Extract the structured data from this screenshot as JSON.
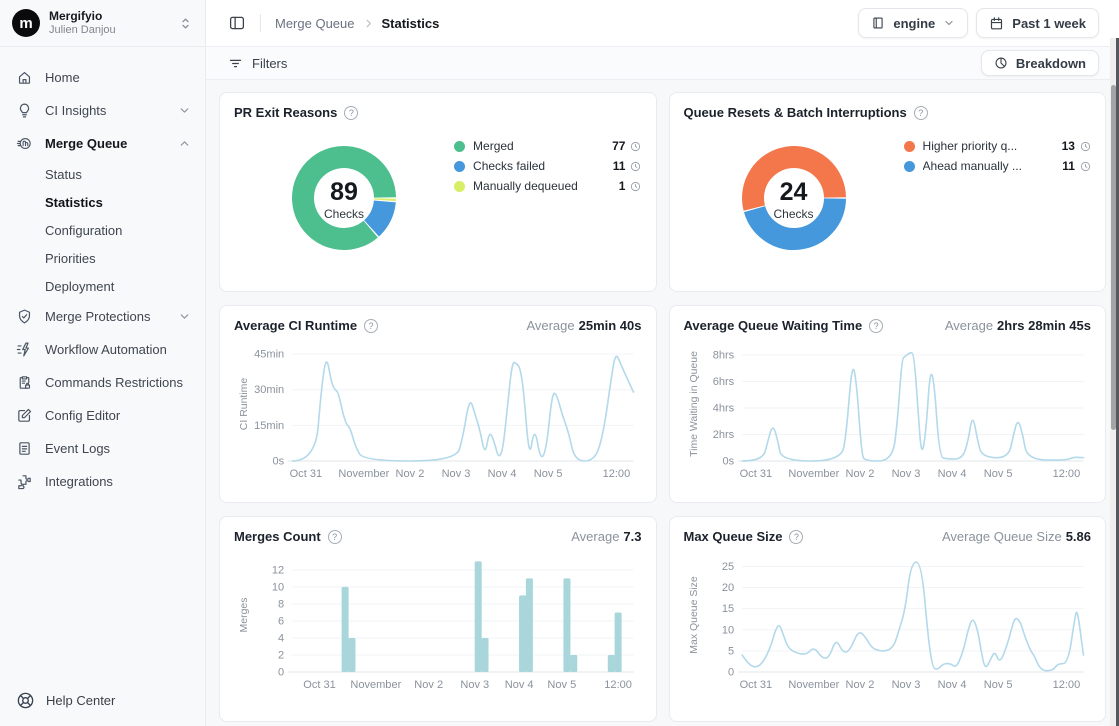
{
  "brand": {
    "org_name": "Mergifyio",
    "user_name": "Julien Danjou",
    "logo_glyph": "m"
  },
  "sidebar": {
    "items": [
      {
        "label": "Home",
        "icon": "home-icon"
      },
      {
        "label": "CI Insights",
        "icon": "lightbulb-icon",
        "chevron": "down"
      },
      {
        "label": "Merge Queue",
        "icon": "merge-queue-icon",
        "chevron": "up",
        "expanded": true
      },
      {
        "label": "Status"
      },
      {
        "label": "Statistics",
        "active": true
      },
      {
        "label": "Configuration"
      },
      {
        "label": "Priorities"
      },
      {
        "label": "Deployment"
      },
      {
        "label": "Merge Protections",
        "icon": "shield-check-icon",
        "chevron": "down"
      },
      {
        "label": "Workflow Automation",
        "icon": "workflow-zap-icon"
      },
      {
        "label": "Commands Restrictions",
        "icon": "clipboard-lock-icon"
      },
      {
        "label": "Config Editor",
        "icon": "pencil-square-icon"
      },
      {
        "label": "Event Logs",
        "icon": "document-lines-icon"
      },
      {
        "label": "Integrations",
        "icon": "puzzle-icon"
      }
    ],
    "help_label": "Help Center"
  },
  "header": {
    "breadcrumb": [
      "Merge Queue",
      "Statistics"
    ],
    "repo_selector": "engine",
    "time_range": "Past 1 week"
  },
  "toolbar": {
    "filters_label": "Filters",
    "breakdown_label": "Breakdown"
  },
  "chart_data": [
    {
      "type": "donut",
      "title": "PR Exit Reasons",
      "center_value": "89",
      "center_label": "Checks",
      "segments": [
        {
          "label": "Merged",
          "value": 77,
          "color": "#4dbe8d"
        },
        {
          "label": "Checks failed",
          "value": 11,
          "color": "#4598db"
        },
        {
          "label": "Manually dequeued",
          "value": 1,
          "color": "#d7ee66"
        }
      ]
    },
    {
      "type": "donut",
      "title": "Queue Resets & Batch Interruptions",
      "center_value": "24",
      "center_label": "Checks",
      "segments": [
        {
          "label": "Higher priority q...",
          "value": 13,
          "color": "#f4764b"
        },
        {
          "label": "Ahead manually ...",
          "value": 11,
          "color": "#4598db"
        }
      ]
    },
    {
      "type": "line",
      "title": "Average CI Runtime",
      "avg_label": "Average",
      "avg_value": "25min 40s",
      "ylabel": "CI Runtime",
      "color": "#b3d9ea",
      "ymax": 48,
      "yticks": [
        {
          "v": 0,
          "t": "0s"
        },
        {
          "v": 15,
          "t": "15min"
        },
        {
          "v": 30,
          "t": "30min"
        },
        {
          "v": 45,
          "t": "45min"
        }
      ],
      "xlabels": [
        "Oct 31",
        "November",
        "Nov 2",
        "Nov 3",
        "Nov 4",
        "Nov 5",
        "12:00"
      ],
      "xfracs": [
        0.04,
        0.21,
        0.345,
        0.48,
        0.615,
        0.75,
        0.95
      ],
      "points": [
        [
          0,
          0
        ],
        [
          0.068,
          0
        ],
        [
          0.085,
          30
        ],
        [
          0.1,
          45
        ],
        [
          0.115,
          33
        ],
        [
          0.125,
          30
        ],
        [
          0.135,
          29
        ],
        [
          0.155,
          16
        ],
        [
          0.17,
          14
        ],
        [
          0.185,
          6
        ],
        [
          0.21,
          0
        ],
        [
          0.48,
          0
        ],
        [
          0.5,
          10
        ],
        [
          0.52,
          27
        ],
        [
          0.535,
          20
        ],
        [
          0.55,
          13
        ],
        [
          0.565,
          2
        ],
        [
          0.578,
          13
        ],
        [
          0.592,
          8
        ],
        [
          0.605,
          1
        ],
        [
          0.618,
          5
        ],
        [
          0.632,
          25
        ],
        [
          0.645,
          42
        ],
        [
          0.658,
          41
        ],
        [
          0.668,
          39
        ],
        [
          0.678,
          30
        ],
        [
          0.695,
          0
        ],
        [
          0.71,
          15
        ],
        [
          0.728,
          0
        ],
        [
          0.745,
          5
        ],
        [
          0.762,
          29
        ],
        [
          0.775,
          28
        ],
        [
          0.79,
          20
        ],
        [
          0.81,
          12
        ],
        [
          0.828,
          0
        ],
        [
          0.885,
          0
        ],
        [
          0.91,
          10
        ],
        [
          0.935,
          35
        ],
        [
          0.948,
          46
        ],
        [
          0.965,
          40
        ],
        [
          1,
          29
        ]
      ]
    },
    {
      "type": "line",
      "title": "Average Queue Waiting Time",
      "avg_label": "Average",
      "avg_value": "2hrs 28min 45s",
      "ylabel": "Time Waiting in Queue",
      "color": "#b3d9ea",
      "ymax": 8.6,
      "yticks": [
        {
          "v": 0,
          "t": "0s"
        },
        {
          "v": 2,
          "t": "2hrs"
        },
        {
          "v": 4,
          "t": "4hrs"
        },
        {
          "v": 6,
          "t": "6hrs"
        },
        {
          "v": 8,
          "t": "8hrs"
        }
      ],
      "xlabels": [
        "Oct 31",
        "November",
        "Nov 2",
        "Nov 3",
        "Nov 4",
        "Nov 5",
        "12:00"
      ],
      "xfracs": [
        0.04,
        0.21,
        0.345,
        0.48,
        0.615,
        0.75,
        0.95
      ],
      "points": [
        [
          0,
          0
        ],
        [
          0.06,
          0
        ],
        [
          0.075,
          1.5
        ],
        [
          0.09,
          2.8
        ],
        [
          0.105,
          1.5
        ],
        [
          0.115,
          0
        ],
        [
          0.29,
          0
        ],
        [
          0.305,
          2
        ],
        [
          0.322,
          7.5
        ],
        [
          0.335,
          6
        ],
        [
          0.35,
          0.5
        ],
        [
          0.36,
          0
        ],
        [
          0.44,
          0
        ],
        [
          0.455,
          3
        ],
        [
          0.468,
          7.7
        ],
        [
          0.478,
          7.9
        ],
        [
          0.492,
          8.2
        ],
        [
          0.503,
          8.1
        ],
        [
          0.515,
          4
        ],
        [
          0.525,
          0.3
        ],
        [
          0.538,
          2
        ],
        [
          0.55,
          6.8
        ],
        [
          0.562,
          6.2
        ],
        [
          0.578,
          0.3
        ],
        [
          0.6,
          0.15
        ],
        [
          0.645,
          0.15
        ],
        [
          0.662,
          1.5
        ],
        [
          0.675,
          3.6
        ],
        [
          0.69,
          1.5
        ],
        [
          0.703,
          0.3
        ],
        [
          0.78,
          0.2
        ],
        [
          0.795,
          2
        ],
        [
          0.808,
          3.2
        ],
        [
          0.822,
          2
        ],
        [
          0.835,
          0.1
        ],
        [
          0.95,
          0.05
        ],
        [
          0.97,
          0.3
        ],
        [
          1,
          0.25
        ]
      ]
    },
    {
      "type": "bar",
      "title": "Merges Count",
      "avg_label": "Average",
      "avg_value": "7.3",
      "ylabel": "Merges",
      "color": "#a9d6db",
      "ymax": 13.4,
      "yticks": [
        {
          "v": 0,
          "t": "0"
        },
        {
          "v": 2,
          "t": "2"
        },
        {
          "v": 4,
          "t": "4"
        },
        {
          "v": 6,
          "t": "6"
        },
        {
          "v": 8,
          "t": "8"
        },
        {
          "v": 10,
          "t": "10"
        },
        {
          "v": 12,
          "t": "12"
        }
      ],
      "xlabels": [
        "Oct 31",
        "November",
        "Nov 2",
        "Nov 3",
        "Nov 4",
        "Nov 5",
        "12:00"
      ],
      "xfracs": [
        0.08,
        0.245,
        0.4,
        0.535,
        0.665,
        0.79,
        0.955
      ],
      "bars": [
        [
          0.155,
          10
        ],
        [
          0.175,
          4
        ],
        [
          0.545,
          13
        ],
        [
          0.565,
          4
        ],
        [
          0.675,
          9
        ],
        [
          0.695,
          11
        ],
        [
          0.805,
          11
        ],
        [
          0.825,
          2
        ],
        [
          0.935,
          2
        ],
        [
          0.955,
          7
        ]
      ]
    },
    {
      "type": "line",
      "title": "Max Queue Size",
      "avg_label": "Average Queue Size",
      "avg_value": "5.86",
      "ylabel": "Max Queue Size",
      "color": "#b3d9ea",
      "ymax": 27,
      "yticks": [
        {
          "v": 0,
          "t": "0"
        },
        {
          "v": 5,
          "t": "5"
        },
        {
          "v": 10,
          "t": "10"
        },
        {
          "v": 15,
          "t": "15"
        },
        {
          "v": 20,
          "t": "20"
        },
        {
          "v": 25,
          "t": "25"
        }
      ],
      "xlabels": [
        "Oct 31",
        "November",
        "Nov 2",
        "Nov 3",
        "Nov 4",
        "Nov 5",
        "12:00"
      ],
      "xfracs": [
        0.04,
        0.21,
        0.345,
        0.48,
        0.615,
        0.75,
        0.95
      ],
      "points": [
        [
          0,
          4
        ],
        [
          0.02,
          1.5
        ],
        [
          0.05,
          1
        ],
        [
          0.08,
          5
        ],
        [
          0.105,
          12
        ],
        [
          0.12,
          9
        ],
        [
          0.135,
          5.5
        ],
        [
          0.165,
          4.3
        ],
        [
          0.19,
          4.2
        ],
        [
          0.21,
          6
        ],
        [
          0.235,
          3.2
        ],
        [
          0.255,
          3.4
        ],
        [
          0.275,
          8
        ],
        [
          0.295,
          4.5
        ],
        [
          0.315,
          5
        ],
        [
          0.34,
          9.8
        ],
        [
          0.36,
          8.5
        ],
        [
          0.385,
          5
        ],
        [
          0.44,
          5
        ],
        [
          0.46,
          10
        ],
        [
          0.478,
          15
        ],
        [
          0.495,
          26
        ],
        [
          0.525,
          26
        ],
        [
          0.545,
          8
        ],
        [
          0.558,
          1
        ],
        [
          0.572,
          0.5
        ],
        [
          0.59,
          2
        ],
        [
          0.61,
          2
        ],
        [
          0.628,
          1
        ],
        [
          0.648,
          5
        ],
        [
          0.662,
          10
        ],
        [
          0.675,
          13
        ],
        [
          0.69,
          10
        ],
        [
          0.7,
          5
        ],
        [
          0.712,
          0.5
        ],
        [
          0.728,
          3
        ],
        [
          0.74,
          5
        ],
        [
          0.755,
          2
        ],
        [
          0.775,
          6
        ],
        [
          0.79,
          10.5
        ],
        [
          0.8,
          13
        ],
        [
          0.815,
          12
        ],
        [
          0.83,
          8
        ],
        [
          0.845,
          5
        ],
        [
          0.855,
          4
        ],
        [
          0.875,
          0.3
        ],
        [
          0.91,
          0.3
        ],
        [
          0.925,
          2
        ],
        [
          0.955,
          2
        ],
        [
          0.975,
          13
        ],
        [
          0.982,
          15
        ],
        [
          1,
          4
        ]
      ]
    }
  ]
}
